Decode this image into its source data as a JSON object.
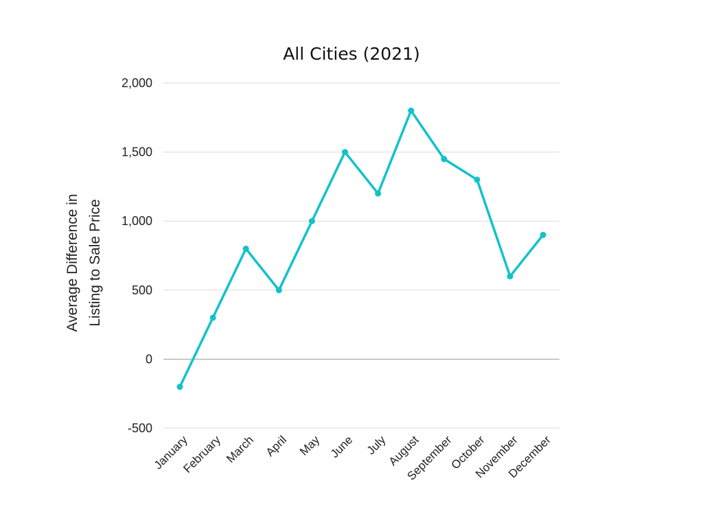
{
  "chart_data": {
    "type": "line",
    "title": "All Cities (2021)",
    "ylabel": [
      "Average Difference in",
      "Listing to Sale Price"
    ],
    "xlabel": "",
    "categories": [
      "January",
      "February",
      "March",
      "April",
      "May",
      "June",
      "July",
      "August",
      "September",
      "October",
      "November",
      "December"
    ],
    "series": [
      {
        "values": [
          -200,
          300,
          800,
          500,
          1000,
          1500,
          1200,
          1800,
          1450,
          1300,
          600,
          900
        ]
      }
    ],
    "ylim": [
      -500,
      2000
    ],
    "yticks": [
      -500,
      0,
      500,
      1000,
      1500,
      2000
    ],
    "ytick_labels": [
      "-500",
      "0",
      "500",
      "1,000",
      "1,500",
      "2,000"
    ],
    "grid": true,
    "legend": "none",
    "colors": {
      "line": "#12c2c9",
      "grid": "#d9d9d9",
      "zero_line": "#999999"
    }
  }
}
